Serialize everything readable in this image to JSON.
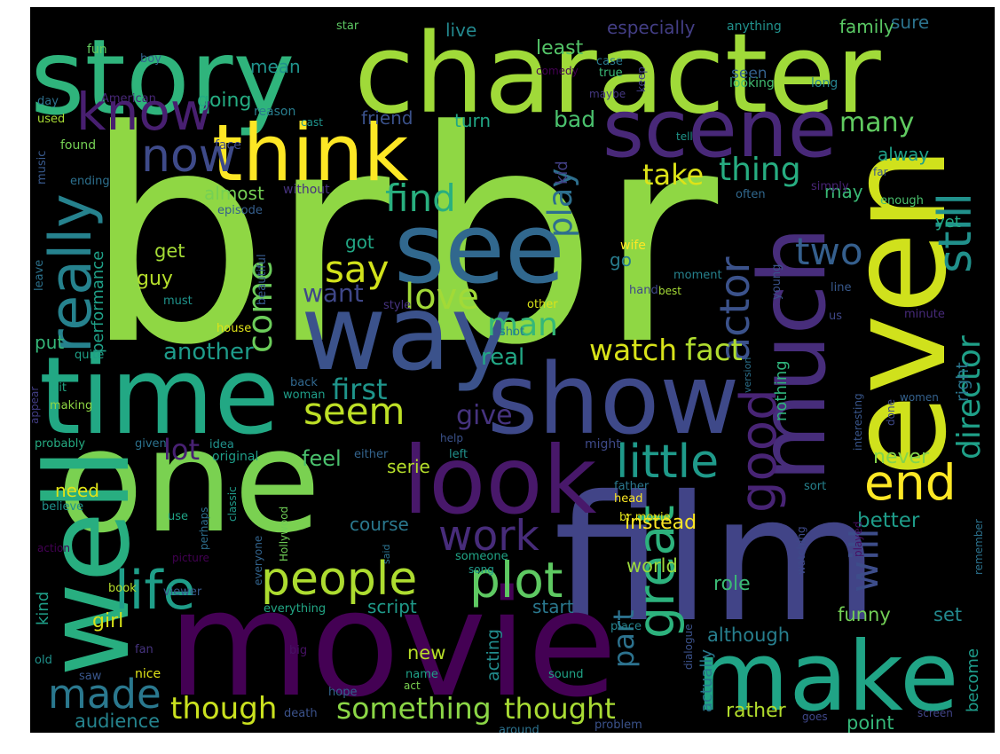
{
  "cloud": {
    "background": "#000000",
    "words": [
      {
        "text": "br",
        "color": "#8fd744"
      },
      {
        "text": "br",
        "color": "#8fd744"
      },
      {
        "text": "film",
        "color": "#414487"
      },
      {
        "text": "movie",
        "color": "#440154"
      },
      {
        "text": "one",
        "color": "#7ad151"
      },
      {
        "text": "character",
        "color": "#a0da39"
      },
      {
        "text": "story",
        "color": "#2fb47c"
      },
      {
        "text": "even",
        "color": "#d0e11c"
      },
      {
        "text": "way",
        "color": "#3b528b"
      },
      {
        "text": "time",
        "color": "#22a884"
      },
      {
        "text": "show",
        "color": "#3e4989"
      },
      {
        "text": "make",
        "color": "#20a486"
      },
      {
        "text": "well",
        "color": "#28ae80"
      },
      {
        "text": "look",
        "color": "#48186a"
      },
      {
        "text": "see",
        "color": "#31688e"
      },
      {
        "text": "scene",
        "color": "#482878"
      },
      {
        "text": "much",
        "color": "#472d7b"
      },
      {
        "text": "think",
        "color": "#fde725"
      },
      {
        "text": "know",
        "color": "#481f70"
      },
      {
        "text": "plot",
        "color": "#5ec962"
      },
      {
        "text": "people",
        "color": "#addc30"
      },
      {
        "text": "life",
        "color": "#1f9e89"
      },
      {
        "text": "great",
        "color": "#2db27d"
      },
      {
        "text": "good",
        "color": "#482475"
      },
      {
        "text": "little",
        "color": "#1f9a8a"
      },
      {
        "text": "really",
        "color": "#26828e"
      },
      {
        "text": "now",
        "color": "#3e4a89"
      },
      {
        "text": "still",
        "color": "#21918c"
      },
      {
        "text": "seem",
        "color": "#bddf26"
      },
      {
        "text": "made",
        "color": "#2a788e"
      },
      {
        "text": "end",
        "color": "#fde725"
      },
      {
        "text": "work",
        "color": "#472c7a"
      },
      {
        "text": "love",
        "color": "#a2da37"
      },
      {
        "text": "director",
        "color": "#1fa088"
      },
      {
        "text": "actor",
        "color": "#3b528b"
      },
      {
        "text": "say",
        "color": "#d2e21b"
      },
      {
        "text": "come",
        "color": "#6ccd5a"
      },
      {
        "text": "find",
        "color": "#29af7f"
      },
      {
        "text": "play",
        "color": "#2e6f8e"
      },
      {
        "text": "two",
        "color": "#355f8d"
      },
      {
        "text": "take",
        "color": "#dde318"
      },
      {
        "text": "thing",
        "color": "#27ad81"
      },
      {
        "text": "something",
        "color": "#8bd646"
      },
      {
        "text": "though",
        "color": "#cae11f"
      },
      {
        "text": "thought",
        "color": "#a8db34"
      },
      {
        "text": "part",
        "color": "#2c728e"
      },
      {
        "text": "will",
        "color": "#3d4d8a"
      },
      {
        "text": "watch",
        "color": "#d8e219"
      },
      {
        "text": "fact",
        "color": "#b0dd2f"
      },
      {
        "text": "first",
        "color": "#1f958b"
      },
      {
        "text": "lot",
        "color": "#482173"
      },
      {
        "text": "give",
        "color": "#46337f"
      },
      {
        "text": "man",
        "color": "#35b779"
      },
      {
        "text": "many",
        "color": "#60ca60"
      },
      {
        "text": "bad",
        "color": "#4ac16d"
      },
      {
        "text": "want",
        "color": "#3f4788"
      },
      {
        "text": "another",
        "color": "#1e9b8a"
      },
      {
        "text": "real",
        "color": "#22a785"
      },
      {
        "text": "audience",
        "color": "#25848e"
      },
      {
        "text": "going",
        "color": "#25ac82"
      },
      {
        "text": "mean",
        "color": "#20928c"
      },
      {
        "text": "live",
        "color": "#23888e"
      },
      {
        "text": "least",
        "color": "#54c568"
      },
      {
        "text": "especially",
        "color": "#433e85"
      },
      {
        "text": "family",
        "color": "#5ac864"
      },
      {
        "text": "sure",
        "color": "#2c738e"
      },
      {
        "text": "turn",
        "color": "#21a685"
      },
      {
        "text": "friend",
        "color": "#3b528b"
      },
      {
        "text": "seen",
        "color": "#34618d"
      },
      {
        "text": "looking",
        "color": "#42be71"
      },
      {
        "text": "long",
        "color": "#26828e"
      },
      {
        "text": "may",
        "color": "#3aba76"
      },
      {
        "text": "alway",
        "color": "#1fa188"
      },
      {
        "text": "kid",
        "color": "#423f85"
      },
      {
        "text": "almost",
        "color": "#75d054"
      },
      {
        "text": "got",
        "color": "#22a785"
      },
      {
        "text": "get",
        "color": "#a5db36"
      },
      {
        "text": "guy",
        "color": "#b5de2b"
      },
      {
        "text": "go",
        "color": "#287c8e"
      },
      {
        "text": "performance",
        "color": "#1fa088"
      },
      {
        "text": "put",
        "color": "#35b779"
      },
      {
        "text": "yet",
        "color": "#22a884"
      },
      {
        "text": "right",
        "color": "#2a768e"
      },
      {
        "text": "never",
        "color": "#84d44b"
      },
      {
        "text": "better",
        "color": "#1e9c89"
      },
      {
        "text": "instead",
        "color": "#fde725"
      },
      {
        "text": "course",
        "color": "#2a788e"
      },
      {
        "text": "feel",
        "color": "#4ac16d"
      },
      {
        "text": "serie",
        "color": "#b5de2b"
      },
      {
        "text": "need",
        "color": "#dfe318"
      },
      {
        "text": "world",
        "color": "#9bd93c"
      },
      {
        "text": "role",
        "color": "#3bbb75"
      },
      {
        "text": "girl",
        "color": "#d8e219"
      },
      {
        "text": "script",
        "color": "#1f9a8a"
      },
      {
        "text": "start",
        "color": "#2a788e"
      },
      {
        "text": "new",
        "color": "#b8de29"
      },
      {
        "text": "acting",
        "color": "#228c8d"
      },
      {
        "text": "although",
        "color": "#277f8e"
      },
      {
        "text": "funny",
        "color": "#73d056"
      },
      {
        "text": "set",
        "color": "#23898e"
      },
      {
        "text": "actually",
        "color": "#2a778e"
      },
      {
        "text": "become",
        "color": "#1e9b8a"
      },
      {
        "text": "point",
        "color": "#35b779"
      },
      {
        "text": "rather",
        "color": "#b2dd2d"
      },
      {
        "text": "kind",
        "color": "#1f9f88"
      },
      {
        "text": "nothing",
        "color": "#2fb47c"
      },
      {
        "text": "fun",
        "color": "#63cb5f"
      },
      {
        "text": "boy",
        "color": "#33638d"
      },
      {
        "text": "star",
        "color": "#5dc863"
      },
      {
        "text": "anything",
        "color": "#21918c"
      },
      {
        "text": "case",
        "color": "#29798e"
      },
      {
        "text": "true",
        "color": "#3aba76"
      },
      {
        "text": "keep",
        "color": "#424086"
      },
      {
        "text": "maybe",
        "color": "#453882"
      },
      {
        "text": "day",
        "color": "#2d708e"
      },
      {
        "text": "American",
        "color": "#482878"
      },
      {
        "text": "used",
        "color": "#a8db34"
      },
      {
        "text": "reason",
        "color": "#287d8e"
      },
      {
        "text": "comedy",
        "color": "#440154"
      },
      {
        "text": "cast",
        "color": "#1f948c"
      },
      {
        "text": "found",
        "color": "#75d054"
      },
      {
        "text": "face",
        "color": "#3e4a89"
      },
      {
        "text": "music",
        "color": "#38598c"
      },
      {
        "text": "ending",
        "color": "#2d708e"
      },
      {
        "text": "without",
        "color": "#46327e"
      },
      {
        "text": "episode",
        "color": "#355f8d"
      },
      {
        "text": "tell",
        "color": "#1f968b"
      },
      {
        "text": "far",
        "color": "#39568c"
      },
      {
        "text": "simply",
        "color": "#482475"
      },
      {
        "text": "often",
        "color": "#31688e"
      },
      {
        "text": "enough",
        "color": "#4ac16d"
      },
      {
        "text": "leave",
        "color": "#2c728e"
      },
      {
        "text": "must",
        "color": "#1f948c"
      },
      {
        "text": "beautiful",
        "color": "#375a8c"
      },
      {
        "text": "style",
        "color": "#46337f"
      },
      {
        "text": "other",
        "color": "#dae319"
      },
      {
        "text": "hand",
        "color": "#3f4788"
      },
      {
        "text": "wife",
        "color": "#fde725"
      },
      {
        "text": "moment",
        "color": "#26828e"
      },
      {
        "text": "best",
        "color": "#a5db36"
      },
      {
        "text": "young",
        "color": "#3b528b"
      },
      {
        "text": "line",
        "color": "#38598c"
      },
      {
        "text": "us",
        "color": "#3f4788"
      },
      {
        "text": "minute",
        "color": "#472a7a"
      },
      {
        "text": "house",
        "color": "#dfe318"
      },
      {
        "text": "shot",
        "color": "#2a788e"
      },
      {
        "text": "quite",
        "color": "#1fa088"
      },
      {
        "text": "back",
        "color": "#31688e"
      },
      {
        "text": "woman",
        "color": "#1f9e89"
      },
      {
        "text": "bit",
        "color": "#22a785"
      },
      {
        "text": "making",
        "color": "#8fd744"
      },
      {
        "text": "version",
        "color": "#2c728e"
      },
      {
        "text": "interesting",
        "color": "#39568c"
      },
      {
        "text": "done",
        "color": "#3e4989"
      },
      {
        "text": "women",
        "color": "#34618d"
      },
      {
        "text": "appear",
        "color": "#433e85"
      },
      {
        "text": "probably",
        "color": "#25ac82"
      },
      {
        "text": "given",
        "color": "#2c728e"
      },
      {
        "text": "idea",
        "color": "#21918c"
      },
      {
        "text": "original",
        "color": "#1f9e89"
      },
      {
        "text": "either",
        "color": "#33638d"
      },
      {
        "text": "help",
        "color": "#3b528b"
      },
      {
        "text": "left",
        "color": "#21918c"
      },
      {
        "text": "might",
        "color": "#3e4a89"
      },
      {
        "text": "believe",
        "color": "#20928c"
      },
      {
        "text": "Hollywood",
        "color": "#70cf57"
      },
      {
        "text": "father",
        "color": "#2a778e"
      },
      {
        "text": "sort",
        "color": "#26828e"
      },
      {
        "text": "head",
        "color": "#fde725"
      },
      {
        "text": "br movie",
        "color": "#dfe318"
      },
      {
        "text": "use",
        "color": "#20a386"
      },
      {
        "text": "classic",
        "color": "#1f9a8a"
      },
      {
        "text": "everyone",
        "color": "#32648e"
      },
      {
        "text": "perhaps",
        "color": "#2e6f8e"
      },
      {
        "text": "action",
        "color": "#440154"
      },
      {
        "text": "picture",
        "color": "#440154"
      },
      {
        "text": "said",
        "color": "#2c728e"
      },
      {
        "text": "someone",
        "color": "#20a486"
      },
      {
        "text": "song",
        "color": "#1f9a8a"
      },
      {
        "text": "watching",
        "color": "#3e4a89"
      },
      {
        "text": "played",
        "color": "#471063"
      },
      {
        "text": "remember",
        "color": "#2c728e"
      },
      {
        "text": "book",
        "color": "#b5de2b"
      },
      {
        "text": "viewer",
        "color": "#38598c"
      },
      {
        "text": "everything",
        "color": "#22a785"
      },
      {
        "text": "dialogue",
        "color": "#3b528b"
      },
      {
        "text": "place",
        "color": "#25848e"
      },
      {
        "text": "fan",
        "color": "#46337f"
      },
      {
        "text": "big",
        "color": "#471164"
      },
      {
        "text": "old",
        "color": "#20928c"
      },
      {
        "text": "saw",
        "color": "#39568c"
      },
      {
        "text": "nice",
        "color": "#dfe318"
      },
      {
        "text": "name",
        "color": "#1fa188"
      },
      {
        "text": "sound",
        "color": "#20a386"
      },
      {
        "text": "act",
        "color": "#7ad151"
      },
      {
        "text": "hope",
        "color": "#32648e"
      },
      {
        "text": "death",
        "color": "#3b528b"
      },
      {
        "text": "around",
        "color": "#2c728e"
      },
      {
        "text": "problem",
        "color": "#3b528b"
      },
      {
        "text": "goes",
        "color": "#3f4788"
      },
      {
        "text": "screen",
        "color": "#414487"
      }
    ]
  }
}
